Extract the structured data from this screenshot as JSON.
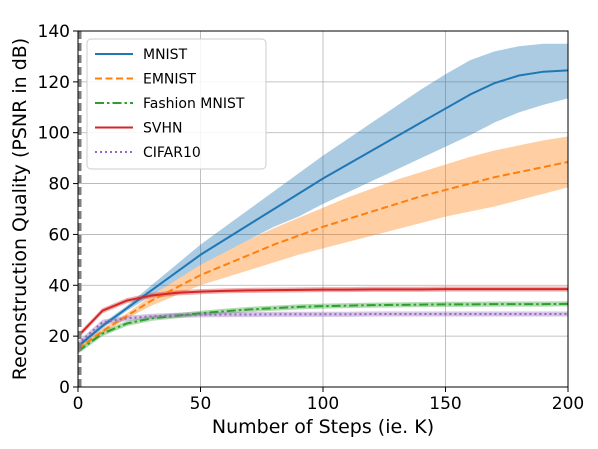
{
  "chart_data": {
    "type": "line",
    "title": "",
    "xlabel": "Number of Steps (ie. K)",
    "ylabel": "Reconstruction Quality (PSNR in dB)",
    "xlim": [
      0,
      200
    ],
    "ylim": [
      0,
      140
    ],
    "xticks": [
      0,
      50,
      100,
      150,
      200
    ],
    "yticks": [
      0,
      20,
      40,
      60,
      80,
      100,
      120,
      140
    ],
    "grid": true,
    "legend_position": "top-left",
    "vertical_marker": {
      "x": 0,
      "style": "dashed",
      "color": "#7f7f7f"
    },
    "x": [
      0,
      10,
      20,
      30,
      40,
      50,
      60,
      70,
      80,
      90,
      100,
      110,
      120,
      130,
      140,
      150,
      160,
      170,
      180,
      190,
      200
    ],
    "series": [
      {
        "name": "MNIST",
        "color": "#1f77b4",
        "dash": "solid",
        "values": [
          16,
          24,
          31,
          38,
          45,
          52,
          58,
          64,
          70,
          76,
          82,
          87.5,
          93,
          98.5,
          104,
          109.5,
          115,
          119.5,
          122.5,
          124,
          124.5
        ],
        "lower": [
          15,
          23,
          30,
          36,
          42,
          48,
          53,
          58,
          63,
          67,
          72,
          76.5,
          81,
          85.5,
          90,
          94.5,
          99,
          104,
          108,
          111,
          113.5
        ],
        "upper": [
          17,
          25,
          32,
          40,
          48,
          56,
          63,
          70,
          77,
          84,
          91,
          97.5,
          104,
          110.5,
          117,
          123,
          128.5,
          132,
          134,
          135,
          135
        ]
      },
      {
        "name": "EMNIST",
        "color": "#ff7f0e",
        "dash": "dashed",
        "values": [
          15,
          22,
          28,
          34,
          39,
          44,
          48,
          52,
          56,
          59.5,
          63,
          66,
          69,
          72,
          75,
          77.5,
          80,
          82.5,
          84.5,
          86.5,
          88.5
        ],
        "lower": [
          14,
          21,
          27,
          32,
          36,
          40,
          43,
          46,
          49,
          52,
          54.5,
          57,
          59.5,
          62,
          64.5,
          67,
          69,
          71,
          73.5,
          76,
          78.5
        ],
        "upper": [
          16,
          23,
          29,
          36,
          42,
          48,
          53,
          58,
          62.5,
          66.5,
          70.5,
          74.5,
          78,
          81.5,
          84.5,
          87.5,
          90.5,
          93,
          95,
          97,
          98.5
        ]
      },
      {
        "name": "Fashion MNIST",
        "color": "#2ca02c",
        "dash": "dashdot",
        "values": [
          14,
          21,
          25,
          27,
          28,
          29,
          29.8,
          30.5,
          31,
          31.5,
          31.8,
          32,
          32.2,
          32.3,
          32.4,
          32.5,
          32.5,
          32.6,
          32.6,
          32.6,
          32.7
        ],
        "lower": [
          13,
          20,
          24,
          26,
          27,
          28,
          28.8,
          29.5,
          30,
          30.5,
          30.8,
          31,
          31.2,
          31.3,
          31.4,
          31.5,
          31.5,
          31.6,
          31.6,
          31.6,
          31.7
        ],
        "upper": [
          15,
          22,
          26,
          28,
          29,
          30,
          30.8,
          31.5,
          32,
          32.5,
          32.8,
          33,
          33.2,
          33.3,
          33.4,
          33.5,
          33.5,
          33.6,
          33.6,
          33.6,
          33.7
        ]
      },
      {
        "name": "SVHN",
        "color": "#d62728",
        "dash": "solid",
        "values": [
          20,
          30,
          34,
          36,
          37,
          37.5,
          37.8,
          38,
          38.1,
          38.2,
          38.3,
          38.3,
          38.4,
          38.4,
          38.4,
          38.5,
          38.5,
          38.5,
          38.5,
          38.5,
          38.5
        ],
        "lower": [
          19,
          29,
          33,
          35,
          36,
          36.5,
          36.8,
          37,
          37.1,
          37.2,
          37.3,
          37.3,
          37.4,
          37.4,
          37.4,
          37.5,
          37.5,
          37.5,
          37.5,
          37.5,
          37.5
        ],
        "upper": [
          21,
          31,
          35,
          37,
          38,
          38.5,
          38.8,
          39,
          39.1,
          39.2,
          39.3,
          39.3,
          39.4,
          39.4,
          39.4,
          39.5,
          39.5,
          39.5,
          39.5,
          39.5,
          39.5
        ]
      },
      {
        "name": "CIFAR10",
        "color": "#9467bd",
        "dash": "dotted",
        "values": [
          17,
          25.5,
          27,
          27.8,
          28.2,
          28.4,
          28.5,
          28.5,
          28.6,
          28.6,
          28.6,
          28.6,
          28.7,
          28.7,
          28.7,
          28.7,
          28.7,
          28.7,
          28.7,
          28.7,
          28.7
        ],
        "lower": [
          16,
          24.5,
          26,
          26.8,
          27.2,
          27.4,
          27.5,
          27.5,
          27.6,
          27.6,
          27.6,
          27.6,
          27.7,
          27.7,
          27.7,
          27.7,
          27.7,
          27.7,
          27.7,
          27.7,
          27.7
        ],
        "upper": [
          18,
          26.5,
          28,
          28.8,
          29.2,
          29.4,
          29.5,
          29.5,
          29.6,
          29.6,
          29.6,
          29.6,
          29.7,
          29.7,
          29.7,
          29.7,
          29.7,
          29.7,
          29.7,
          29.7,
          29.7
        ]
      }
    ]
  }
}
